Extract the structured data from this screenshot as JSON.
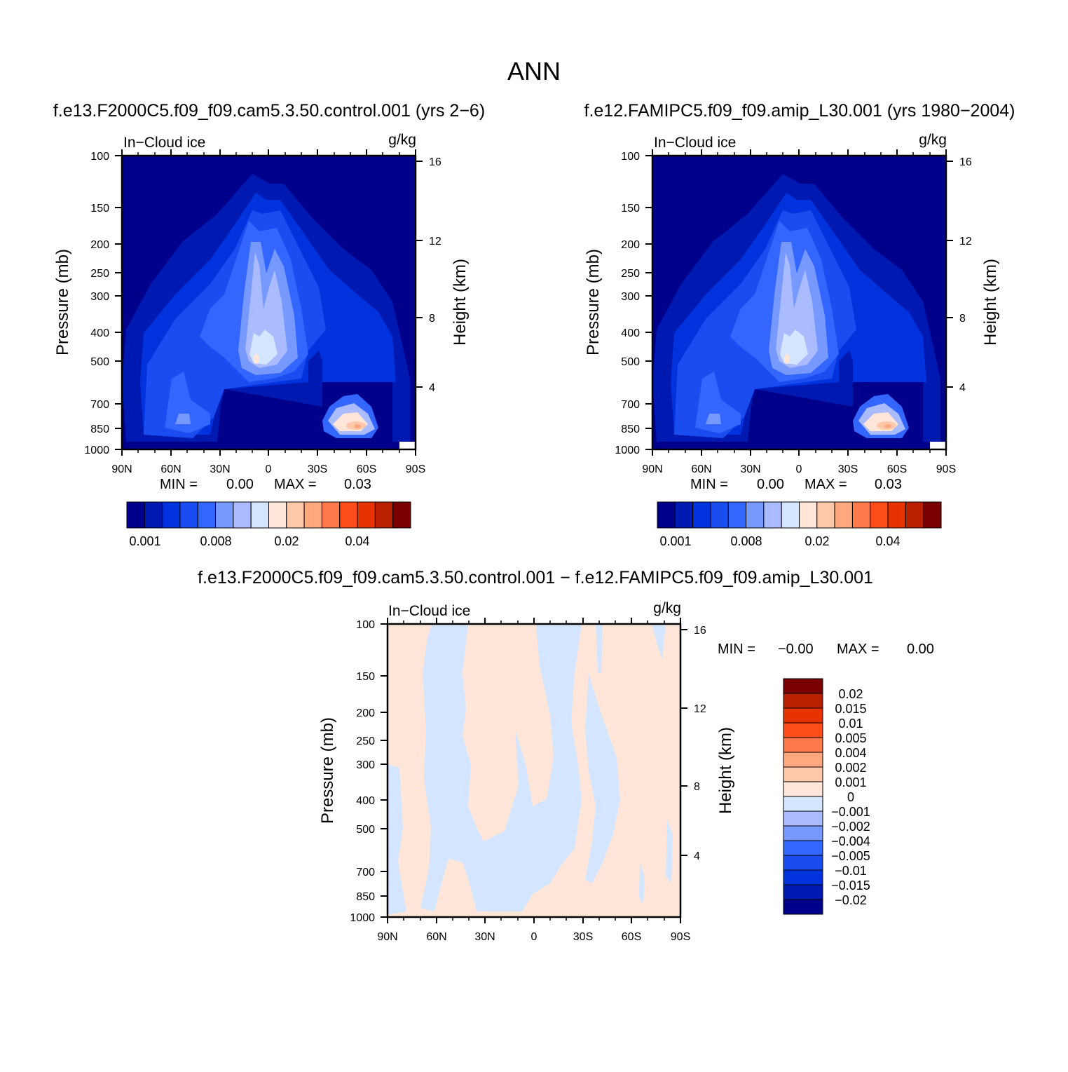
{
  "figure": {
    "title": "ANN"
  },
  "colors": {
    "abs_palette": [
      "#00008b",
      "#0019b0",
      "#0033dd",
      "#1a4cf0",
      "#3366ff",
      "#7799ff",
      "#aabbff",
      "#d4e6ff",
      "#ffe6d8",
      "#ffc8aa",
      "#ffa77f",
      "#ff7a4a",
      "#ff4d1a",
      "#e63300",
      "#b82000",
      "#7a0000"
    ],
    "diff_palette": [
      "#00008b",
      "#0019b0",
      "#0033dd",
      "#1a4cf0",
      "#3366ff",
      "#7799ff",
      "#aabbff",
      "#d4e6ff",
      "#ffe6d8",
      "#ffc8aa",
      "#ffa77f",
      "#ff7a4a",
      "#ff4d1a",
      "#e63300",
      "#b82000",
      "#7a0000"
    ]
  },
  "chart_data": [
    {
      "type": "heatmap",
      "id": "top-left",
      "title": "f.e13.F2000C5.f09_f09.cam5.3.50.control.001 (yrs 2-6)",
      "variable": "In-Cloud ice",
      "units": "g/kg",
      "ylabel": "Pressure (mb)",
      "y2label": "Height (km)",
      "x_ticks": [
        "90N",
        "60N",
        "30N",
        "0",
        "30S",
        "60S",
        "90S"
      ],
      "y_ticks": [
        "100",
        "150",
        "200",
        "250",
        "300",
        "400",
        "500",
        "700",
        "850",
        "1000"
      ],
      "y2_ticks": [
        "16",
        "12",
        "8",
        "4"
      ],
      "min_label": "MIN =",
      "min_value": "0.00",
      "max_label": "MAX =",
      "max_value": "0.03",
      "colorbar_labels": [
        "0.001",
        "0.008",
        "0.02",
        "0.04"
      ]
    },
    {
      "type": "heatmap",
      "id": "top-right",
      "title": "f.e12.FAMIPC5.f09_f09.amip_L30.001 (yrs 1980-2004)",
      "variable": "In-Cloud ice",
      "units": "g/kg",
      "ylabel": "Pressure (mb)",
      "y2label": "Height (km)",
      "x_ticks": [
        "90N",
        "60N",
        "30N",
        "0",
        "30S",
        "60S",
        "90S"
      ],
      "y_ticks": [
        "100",
        "150",
        "200",
        "250",
        "300",
        "400",
        "500",
        "700",
        "850",
        "1000"
      ],
      "y2_ticks": [
        "16",
        "12",
        "8",
        "4"
      ],
      "min_label": "MIN =",
      "min_value": "0.00",
      "max_label": "MAX =",
      "max_value": "0.03",
      "colorbar_labels": [
        "0.001",
        "0.008",
        "0.02",
        "0.04"
      ]
    },
    {
      "type": "heatmap",
      "id": "bottom",
      "title": "f.e13.F2000C5.f09_f09.cam5.3.50.control.001 - f.e12.FAMIPC5.f09_f09.amip_L30.001",
      "variable": "In-Cloud ice",
      "units": "g/kg",
      "ylabel": "Pressure (mb)",
      "y2label": "Height (km)",
      "x_ticks": [
        "90N",
        "60N",
        "30N",
        "0",
        "30S",
        "60S",
        "90S"
      ],
      "y_ticks": [
        "100",
        "150",
        "200",
        "250",
        "300",
        "400",
        "500",
        "700",
        "850",
        "1000"
      ],
      "y2_ticks": [
        "16",
        "12",
        "8",
        "4"
      ],
      "min_label": "MIN =",
      "min_value": "-0.00",
      "max_label": "MAX =",
      "max_value": "0.00",
      "colorbar_labels": [
        "0.02",
        "0.015",
        "0.01",
        "0.005",
        "0.004",
        "0.002",
        "0.001",
        "0",
        "-0.001",
        "-0.002",
        "-0.004",
        "-0.005",
        "-0.01",
        "-0.015",
        "-0.02"
      ]
    }
  ]
}
